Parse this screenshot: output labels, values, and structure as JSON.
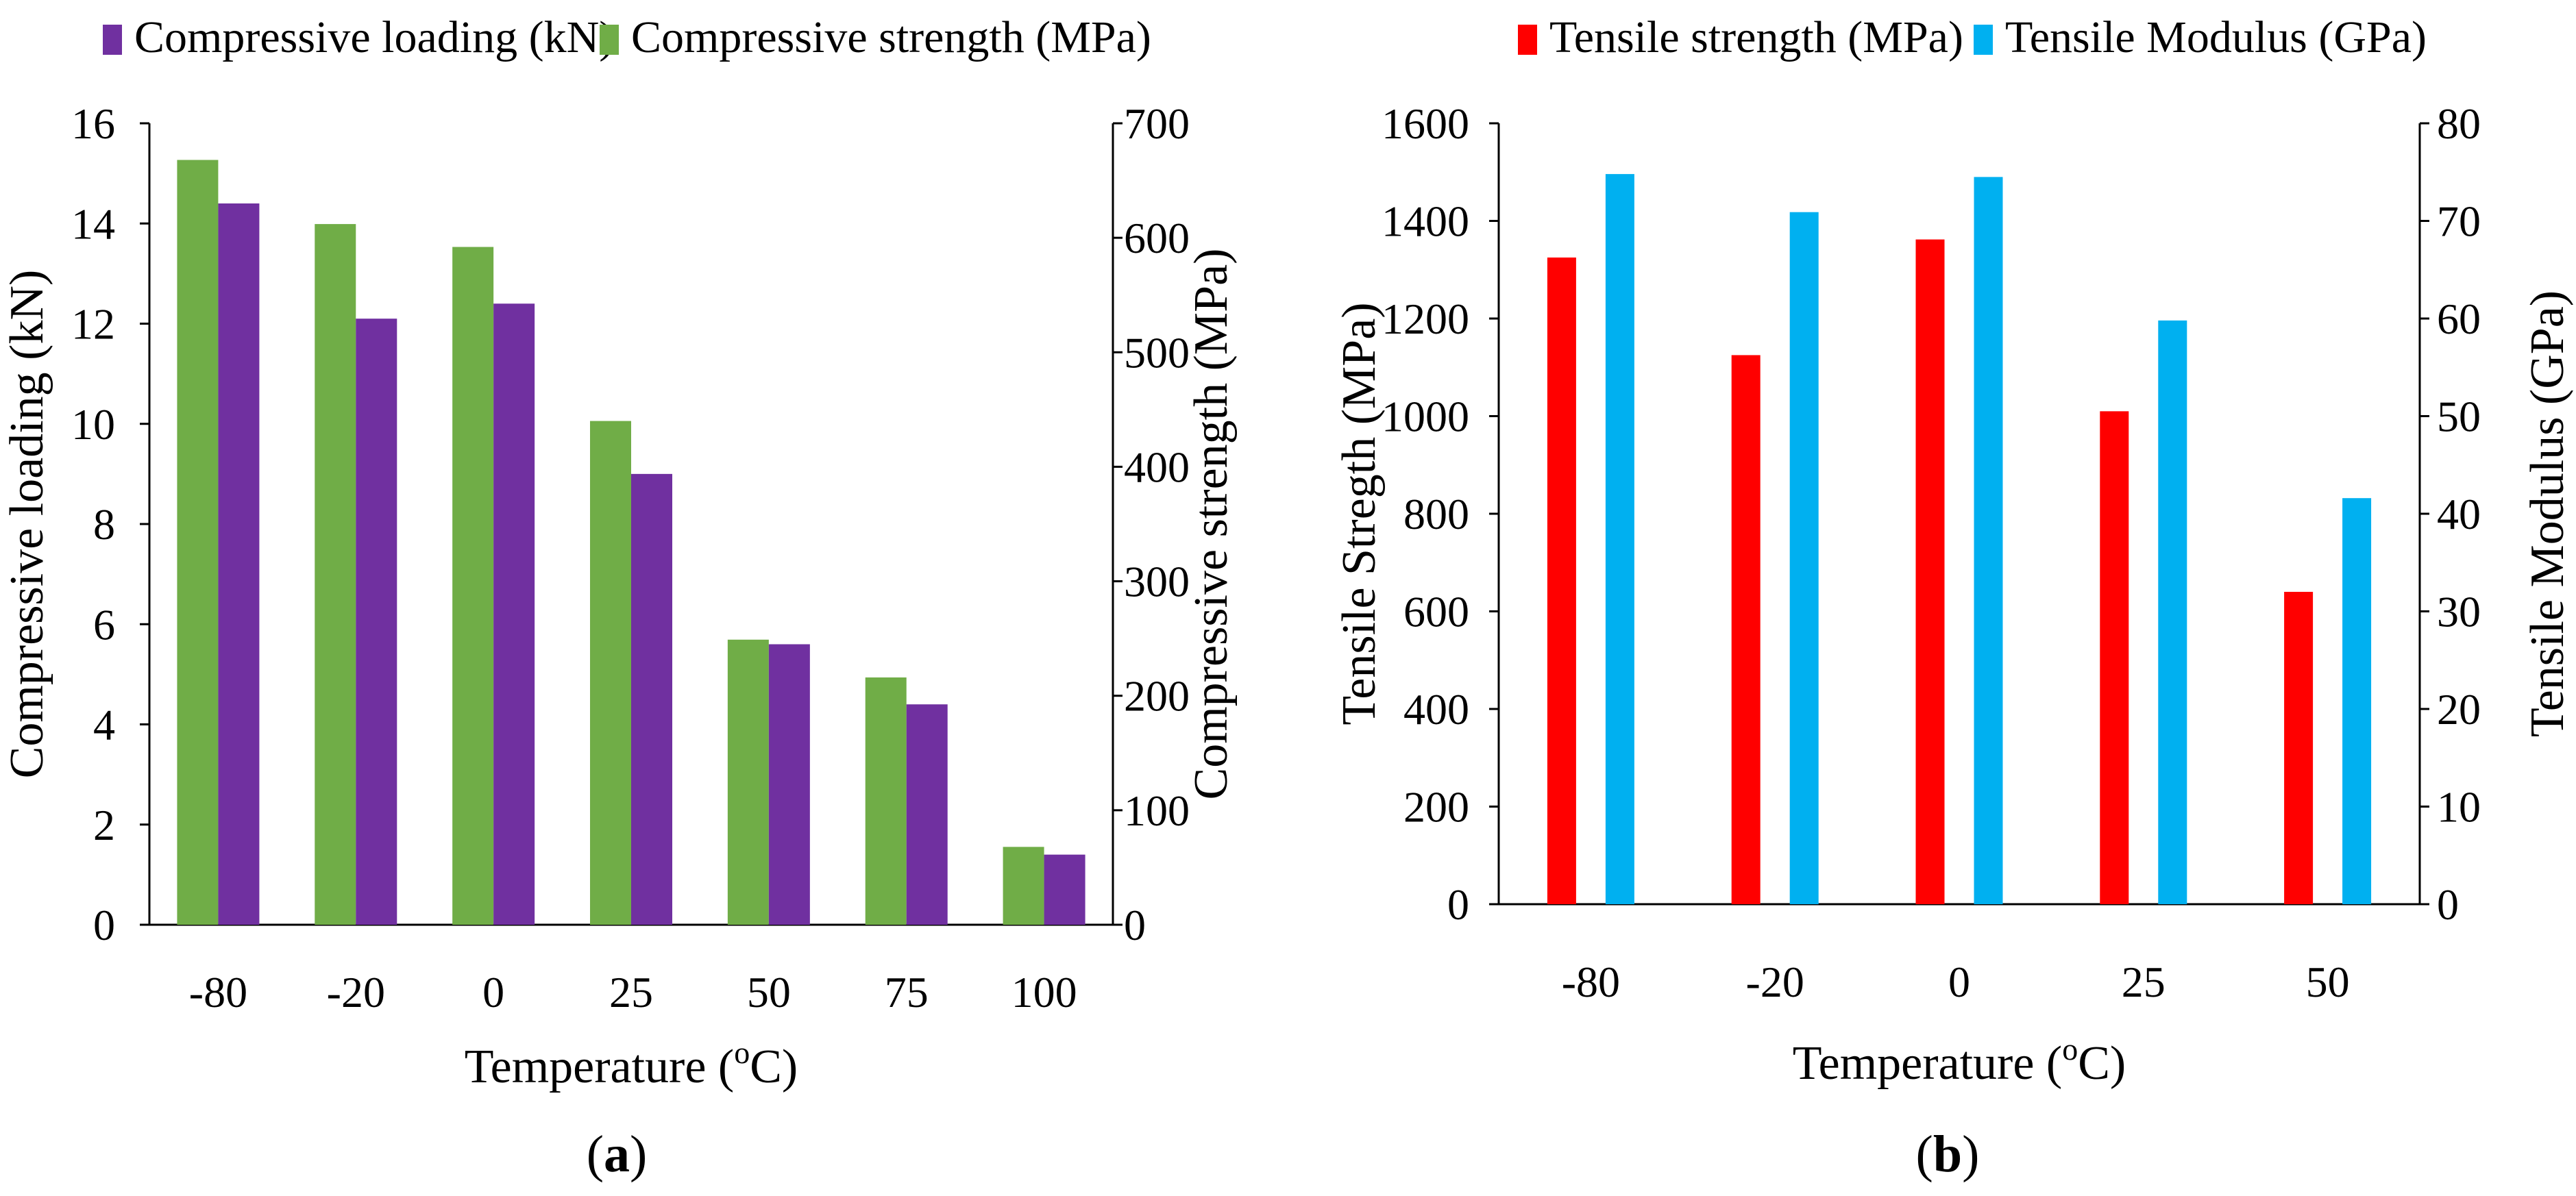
{
  "chart_data": [
    {
      "type": "bar",
      "panel": "(a)",
      "panel_parts": {
        "open": "(",
        "letter": "a",
        "close": ")"
      },
      "categories": [
        "-80",
        "-20",
        "0",
        "25",
        "50",
        "75",
        "100"
      ],
      "series": [
        {
          "name": "Compressive loading (kN)",
          "axis": "left",
          "color": "#7030A0",
          "values": [
            14.4,
            12.1,
            12.4,
            9.0,
            5.6,
            4.4,
            1.4
          ]
        },
        {
          "name": "Compressive strength (MPa)",
          "axis": "right",
          "color": "#70AD47",
          "values": [
            668,
            612,
            592,
            440,
            249,
            216,
            68
          ]
        }
      ],
      "xlabel": "Temperature (oC)",
      "xlabel_parts": {
        "pre": "Temperature (",
        "sup": "o",
        "post": "C)"
      },
      "ylabel_left": "Compressive loading (kN)",
      "ylabel_right": "Compressive strength (MPa)",
      "ylim_left": [
        0,
        16
      ],
      "ylim_right": [
        0,
        700
      ],
      "yticks_left": [
        "0",
        "2",
        "4",
        "6",
        "8",
        "10",
        "12",
        "14",
        "16"
      ],
      "yticks_right": [
        "0",
        "100",
        "200",
        "300",
        "400",
        "500",
        "600",
        "700"
      ],
      "legend_position": "top",
      "grid": false
    },
    {
      "type": "bar",
      "panel": "(b)",
      "panel_parts": {
        "open": "(",
        "letter": "b",
        "close": ")"
      },
      "categories": [
        "-80",
        "-20",
        "0",
        "25",
        "50"
      ],
      "series": [
        {
          "name": "Tensile strength (MPa)",
          "axis": "left",
          "color": "#FF0000",
          "values": [
            1325,
            1125,
            1362,
            1010,
            640
          ]
        },
        {
          "name": "Tensile Modulus (GPa)",
          "axis": "right",
          "color": "#00B0F0",
          "values": [
            74.8,
            70.9,
            74.5,
            59.8,
            41.6
          ]
        }
      ],
      "xlabel": "Temperature (oC)",
      "xlabel_parts": {
        "pre": "Temperature (",
        "sup": "o",
        "post": "C)"
      },
      "ylabel_left": "Tensile Stregth (MPa)",
      "ylabel_right": "Tensile Modulus (GPa)",
      "ylim_left": [
        0,
        1600
      ],
      "ylim_right": [
        0,
        80
      ],
      "yticks_left": [
        "0",
        "200",
        "400",
        "600",
        "800",
        "1000",
        "1200",
        "1400",
        "1600"
      ],
      "yticks_right": [
        "0",
        "10",
        "20",
        "30",
        "40",
        "50",
        "60",
        "70",
        "80"
      ],
      "legend_position": "top",
      "grid": false
    }
  ]
}
